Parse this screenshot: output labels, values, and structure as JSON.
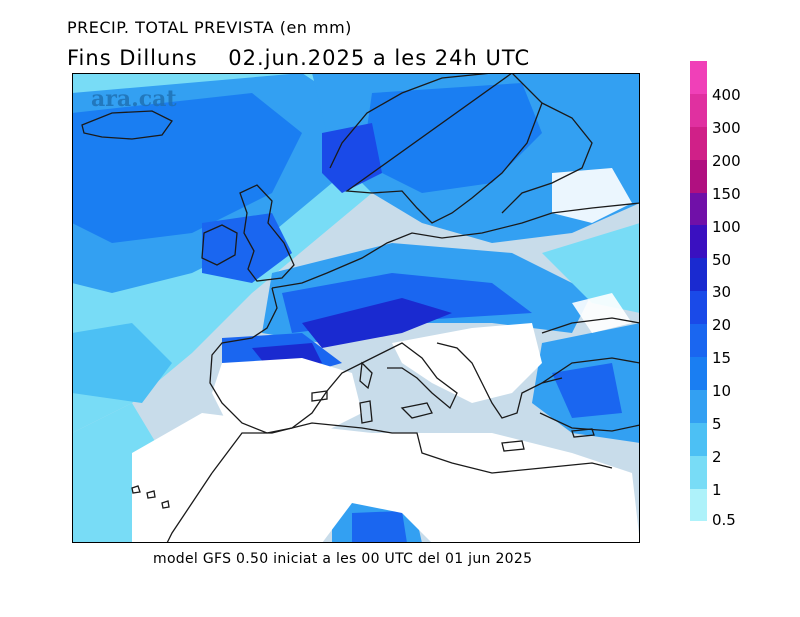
{
  "header": {
    "title": "PRECIP. TOTAL PREVISTA (en mm)",
    "valid_line": "Fins Dilluns    02.jun.2025 a les 24h UTC"
  },
  "map": {
    "watermark": "ara.cat"
  },
  "footer": {
    "model_info": "model GFS 0.50 iniciat a les 00 UTC del 01 jun 2025"
  },
  "legend": {
    "unit": "mm",
    "levels": [
      {
        "label": "400",
        "color": "#f040b8"
      },
      {
        "label": "300",
        "color": "#e030a0"
      },
      {
        "label": "200",
        "color": "#d02088"
      },
      {
        "label": "150",
        "color": "#b01080"
      },
      {
        "label": "100",
        "color": "#7010a8"
      },
      {
        "label": "50",
        "color": "#3a10c0"
      },
      {
        "label": "30",
        "color": "#1a2ad0"
      },
      {
        "label": "20",
        "color": "#1a4ae8"
      },
      {
        "label": "15",
        "color": "#1a66f0"
      },
      {
        "label": "10",
        "color": "#1a7ef2"
      },
      {
        "label": "5",
        "color": "#33a0f2"
      },
      {
        "label": "2",
        "color": "#4cc0f4"
      },
      {
        "label": "1",
        "color": "#78dcf6"
      },
      {
        "label": "0.5",
        "color": "#aef2fa"
      }
    ]
  },
  "colors": {
    "sea_dry": "#c8dcea",
    "land_dry": "#ffffff",
    "coastline": "#1a1a1a"
  }
}
